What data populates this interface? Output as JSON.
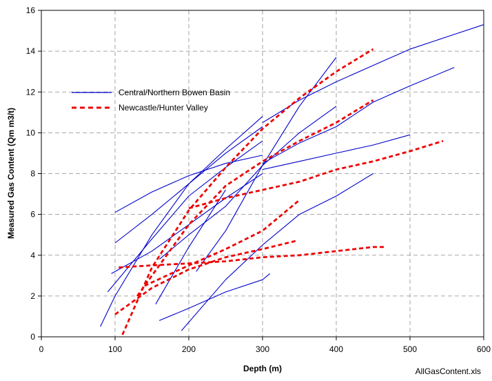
{
  "chart_data": {
    "type": "line",
    "title": "",
    "xlabel": "Depth (m)",
    "ylabel": "Measured Gas Content (Qm m3/t)",
    "xlim": [
      0,
      600
    ],
    "ylim": [
      0,
      16
    ],
    "x_ticks": [
      0,
      100,
      200,
      300,
      400,
      500,
      600
    ],
    "y_ticks": [
      0,
      2,
      4,
      6,
      8,
      10,
      12,
      14,
      16
    ],
    "grid": true,
    "grid_style": "dashed",
    "legend_position": "upper-left",
    "legend": [
      {
        "label": "Central/Northern Bowen Basin",
        "color": "#0000cc",
        "style": "solid"
      },
      {
        "label": "Newcastle/Hunter Valley",
        "color": "#ee0000",
        "style": "dashed"
      }
    ],
    "footnote": "AllGasContent.xls",
    "series": [
      {
        "group": "Central/Northern Bowen Basin",
        "color": "#0000cc",
        "style": "solid",
        "points": [
          [
            300,
            8.5
          ],
          [
            350,
            9.5
          ],
          [
            400,
            10.3
          ],
          [
            450,
            11.5
          ],
          [
            500,
            12.3
          ],
          [
            560,
            13.2
          ]
        ]
      },
      {
        "group": "Central/Northern Bowen Basin",
        "color": "#0000cc",
        "style": "solid",
        "points": [
          [
            300,
            10.5
          ],
          [
            350,
            11.6
          ],
          [
            400,
            12.5
          ],
          [
            450,
            13.3
          ],
          [
            500,
            14.1
          ],
          [
            550,
            14.7
          ],
          [
            600,
            15.3
          ]
        ]
      },
      {
        "group": "Central/Northern Bowen Basin",
        "color": "#0000cc",
        "style": "solid",
        "points": [
          [
            300,
            8.2
          ],
          [
            350,
            8.6
          ],
          [
            400,
            9.0
          ],
          [
            450,
            9.4
          ],
          [
            500,
            9.9
          ]
        ]
      },
      {
        "group": "Central/Northern Bowen Basin",
        "color": "#0000cc",
        "style": "solid",
        "points": [
          [
            190,
            0.3
          ],
          [
            250,
            2.8
          ],
          [
            300,
            4.5
          ],
          [
            350,
            6.0
          ],
          [
            400,
            6.9
          ],
          [
            450,
            8.0
          ]
        ]
      },
      {
        "group": "Central/Northern Bowen Basin",
        "color": "#0000cc",
        "style": "solid",
        "points": [
          [
            160,
            0.8
          ],
          [
            200,
            1.4
          ],
          [
            250,
            2.2
          ],
          [
            300,
            2.8
          ],
          [
            310,
            3.1
          ]
        ]
      },
      {
        "group": "Central/Northern Bowen Basin",
        "color": "#0000cc",
        "style": "solid",
        "points": [
          [
            100,
            6.1
          ],
          [
            150,
            7.1
          ],
          [
            200,
            7.9
          ],
          [
            250,
            8.5
          ],
          [
            300,
            8.9
          ]
        ]
      },
      {
        "group": "Central/Northern Bowen Basin",
        "color": "#0000cc",
        "style": "solid",
        "points": [
          [
            100,
            4.6
          ],
          [
            150,
            6.0
          ],
          [
            200,
            7.5
          ],
          [
            250,
            9.0
          ],
          [
            300,
            10.3
          ]
        ]
      },
      {
        "group": "Central/Northern Bowen Basin",
        "color": "#0000cc",
        "style": "solid",
        "points": [
          [
            80,
            0.5
          ],
          [
            100,
            2.0
          ],
          [
            150,
            5.0
          ],
          [
            200,
            7.5
          ],
          [
            250,
            9.2
          ],
          [
            300,
            10.8
          ]
        ]
      },
      {
        "group": "Central/Northern Bowen Basin",
        "color": "#0000cc",
        "style": "solid",
        "points": [
          [
            90,
            2.2
          ],
          [
            150,
            4.8
          ],
          [
            200,
            6.9
          ],
          [
            250,
            8.3
          ],
          [
            300,
            9.6
          ]
        ]
      },
      {
        "group": "Central/Northern Bowen Basin",
        "color": "#0000cc",
        "style": "solid",
        "points": [
          [
            95,
            3.1
          ],
          [
            150,
            4.2
          ],
          [
            200,
            5.5
          ],
          [
            250,
            6.8
          ],
          [
            300,
            8.0
          ]
        ]
      },
      {
        "group": "Central/Northern Bowen Basin",
        "color": "#0000cc",
        "style": "solid",
        "points": [
          [
            155,
            1.6
          ],
          [
            200,
            4.4
          ],
          [
            250,
            7.2
          ]
        ]
      },
      {
        "group": "Central/Northern Bowen Basin",
        "color": "#0000cc",
        "style": "solid",
        "points": [
          [
            160,
            3.8
          ],
          [
            200,
            5.0
          ],
          [
            250,
            6.4
          ],
          [
            300,
            8.4
          ],
          [
            350,
            10.0
          ],
          [
            400,
            11.3
          ]
        ]
      },
      {
        "group": "Central/Northern Bowen Basin",
        "color": "#0000cc",
        "style": "solid",
        "points": [
          [
            210,
            3.2
          ],
          [
            250,
            5.2
          ],
          [
            300,
            8.4
          ],
          [
            350,
            11.3
          ],
          [
            400,
            13.7
          ]
        ]
      },
      {
        "group": "Newcastle/Hunter Valley",
        "color": "#ee0000",
        "style": "dashed",
        "points": [
          [
            110,
            0.1
          ],
          [
            150,
            3.4
          ],
          [
            200,
            6.2
          ],
          [
            250,
            8.3
          ],
          [
            300,
            10.2
          ],
          [
            350,
            11.7
          ],
          [
            400,
            13.0
          ],
          [
            450,
            14.1
          ]
        ]
      },
      {
        "group": "Newcastle/Hunter Valley",
        "color": "#ee0000",
        "style": "dashed",
        "points": [
          [
            130,
            2.0
          ],
          [
            150,
            3.0
          ],
          [
            200,
            5.5
          ],
          [
            250,
            7.4
          ],
          [
            300,
            8.6
          ],
          [
            350,
            9.6
          ],
          [
            400,
            10.5
          ],
          [
            450,
            11.6
          ]
        ]
      },
      {
        "group": "Newcastle/Hunter Valley",
        "color": "#ee0000",
        "style": "dashed",
        "points": [
          [
            200,
            6.3
          ],
          [
            250,
            6.8
          ],
          [
            300,
            7.2
          ],
          [
            350,
            7.6
          ],
          [
            400,
            8.2
          ],
          [
            450,
            8.6
          ],
          [
            500,
            9.1
          ],
          [
            545,
            9.6
          ]
        ]
      },
      {
        "group": "Newcastle/Hunter Valley",
        "color": "#ee0000",
        "style": "dashed",
        "points": [
          [
            140,
            2.5
          ],
          [
            200,
            3.5
          ],
          [
            250,
            4.3
          ],
          [
            300,
            5.2
          ],
          [
            350,
            6.7
          ]
        ]
      },
      {
        "group": "Newcastle/Hunter Valley",
        "color": "#ee0000",
        "style": "dashed",
        "points": [
          [
            100,
            1.1
          ],
          [
            150,
            2.4
          ],
          [
            200,
            3.3
          ],
          [
            250,
            3.9
          ],
          [
            300,
            4.3
          ],
          [
            345,
            4.7
          ]
        ]
      },
      {
        "group": "Newcastle/Hunter Valley",
        "color": "#ee0000",
        "style": "dashed",
        "points": [
          [
            105,
            3.4
          ],
          [
            150,
            3.5
          ],
          [
            200,
            3.6
          ],
          [
            250,
            3.7
          ],
          [
            300,
            3.9
          ],
          [
            350,
            4.0
          ],
          [
            400,
            4.2
          ],
          [
            450,
            4.4
          ],
          [
            465,
            4.4
          ]
        ]
      }
    ]
  }
}
